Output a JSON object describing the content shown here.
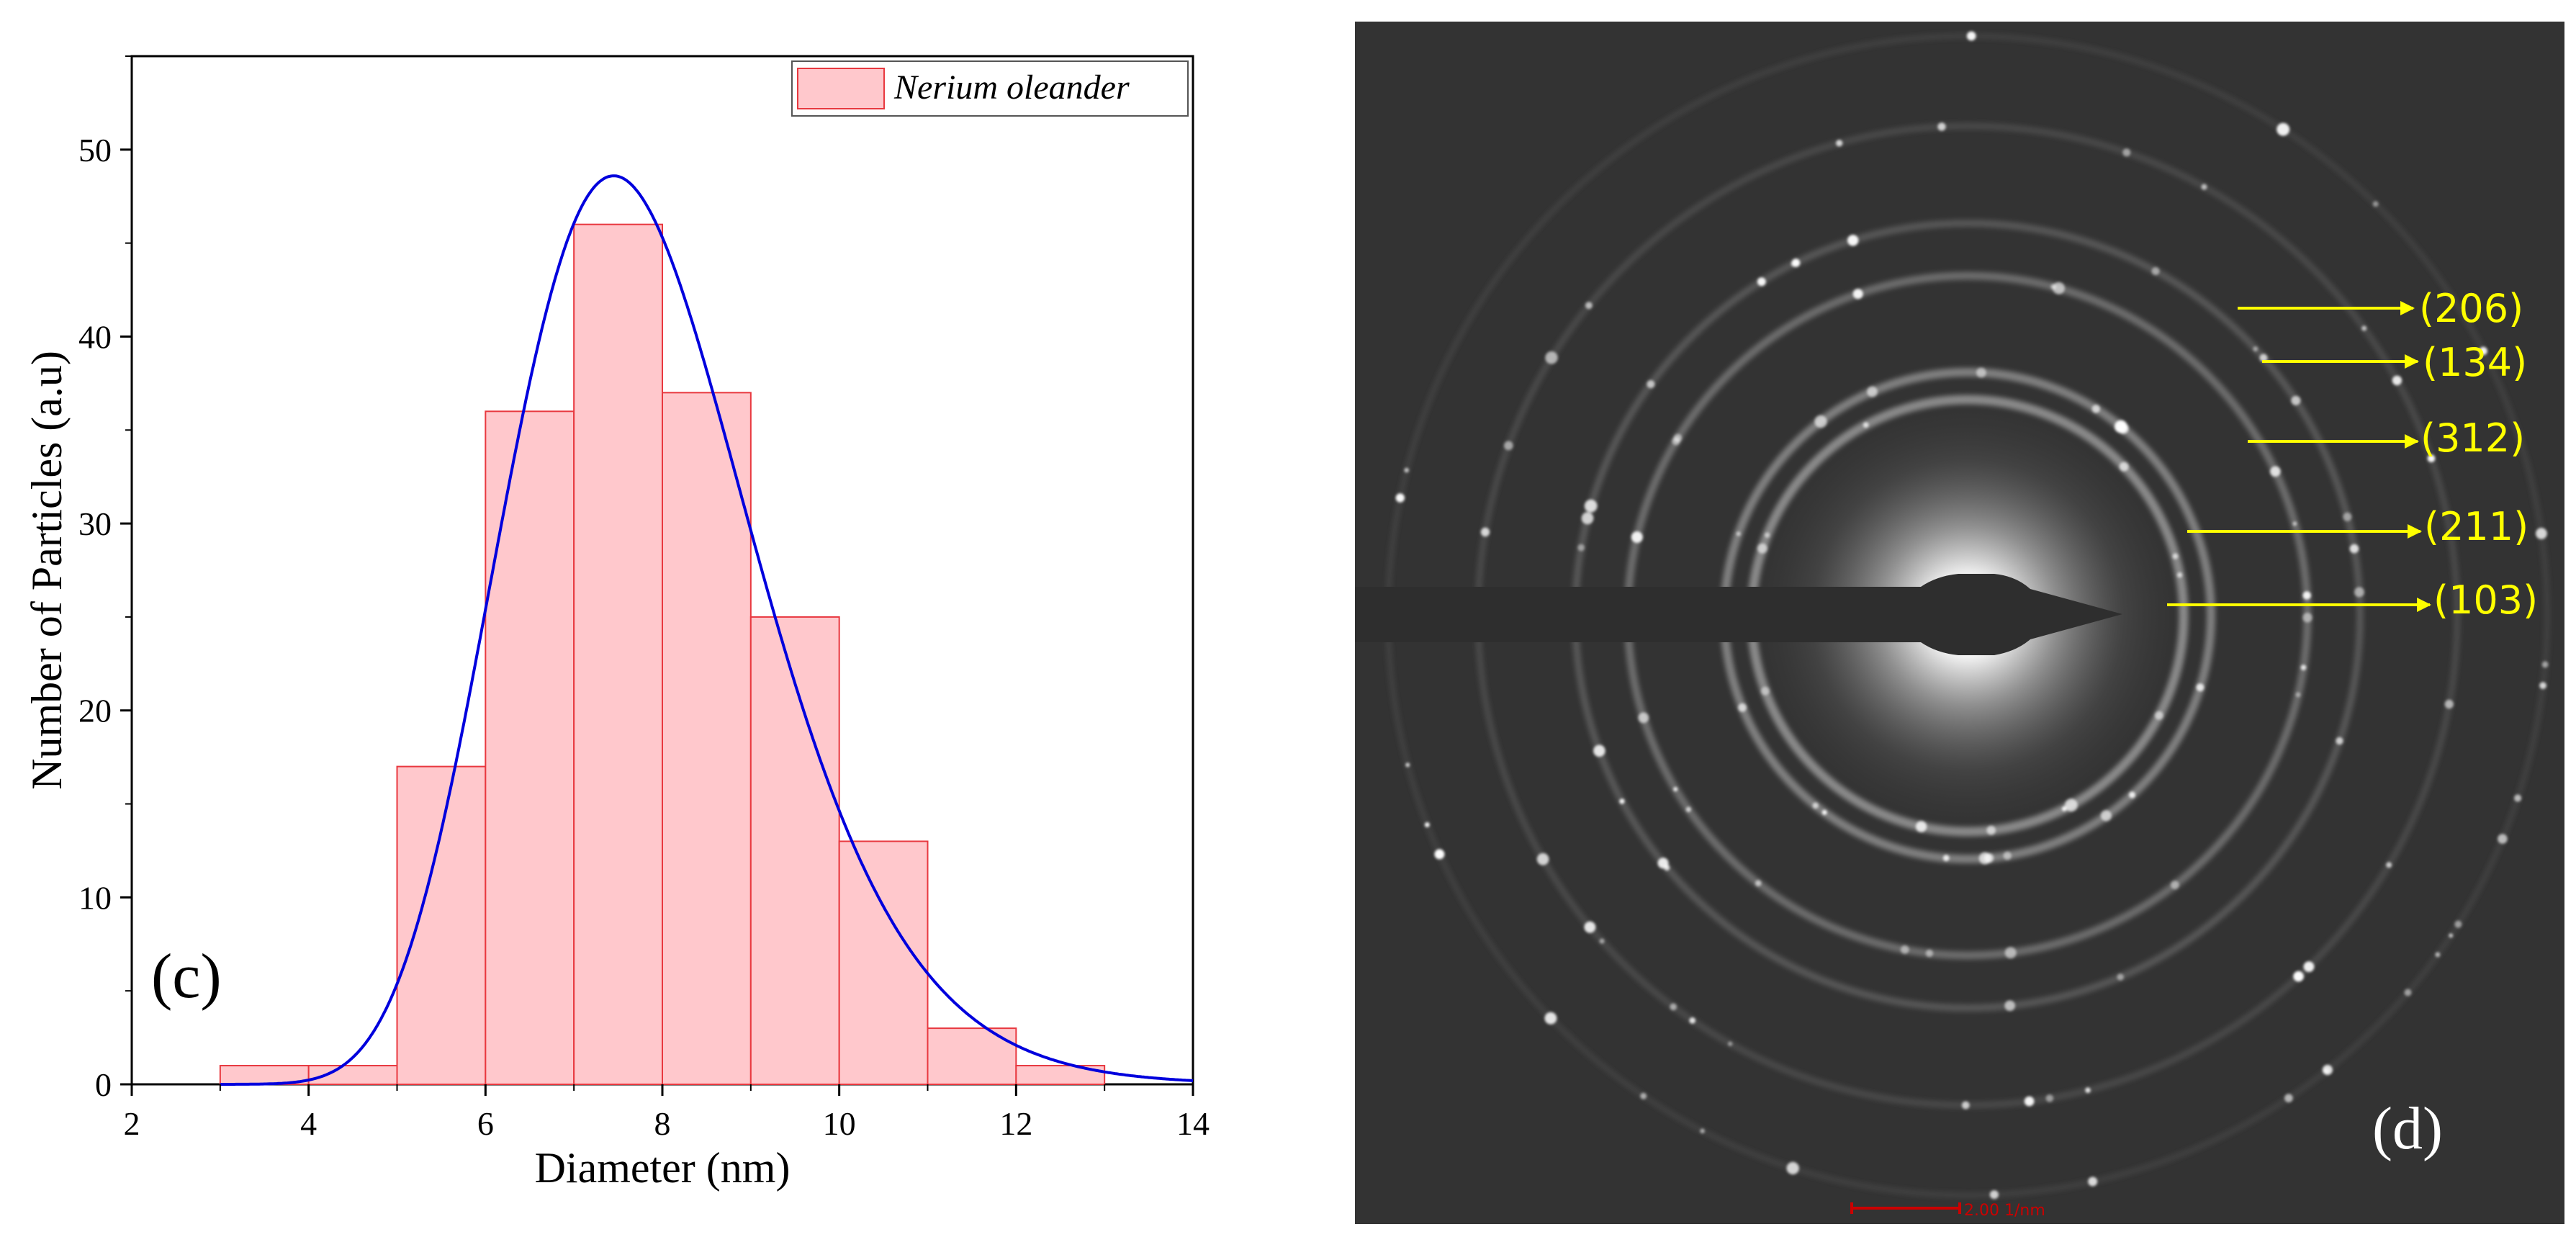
{
  "chart_data": [
    {
      "type": "bar",
      "panel_label": "(c)",
      "title": "",
      "xlabel": "Diameter (nm)",
      "ylabel": "Number of Particles (a.u)",
      "xlim": [
        2,
        14
      ],
      "ylim": [
        0,
        55
      ],
      "xticks": [
        2,
        4,
        6,
        8,
        10,
        12,
        14
      ],
      "yticks": [
        0,
        10,
        20,
        30,
        40,
        50
      ],
      "bin_width": 1,
      "bin_starts": [
        3,
        4,
        5,
        6,
        7,
        8,
        9,
        10,
        11,
        12
      ],
      "values": [
        1,
        1,
        17,
        36,
        46,
        37,
        25,
        13,
        3,
        1
      ],
      "legend": {
        "entries": [
          "Nerium oleander"
        ],
        "position": "top-right"
      },
      "fit_curve": {
        "type": "lognormal",
        "color": "#0000dd",
        "peak_x": 7.45,
        "peak_y": 48.6
      },
      "colors": {
        "bar_fill": "#ffc8cc",
        "bar_edge": "#e8383f",
        "curve": "#0000dd"
      }
    }
  ],
  "saed": {
    "panel_label": "(d)",
    "ring_labels": [
      "(206)",
      "(134)",
      "(312)",
      "(211)",
      "(103)"
    ],
    "scale_bar_label": "2.00 1/nm",
    "colors": {
      "background": "#333333",
      "labels": "#ffff00",
      "scale_bar": "#cc0000"
    }
  }
}
